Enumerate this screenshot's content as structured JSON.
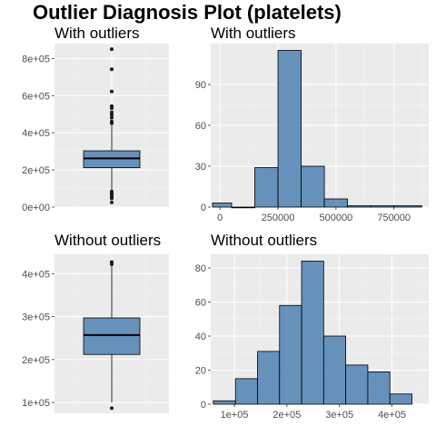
{
  "title": "Outlier Diagnosis Plot (platelets)",
  "colors": {
    "fill": "#4f81b2",
    "panel": "#ebebeb",
    "grid": "#ffffff",
    "text": "#4d4d4d"
  },
  "chart_data": [
    {
      "id": "box_with",
      "type": "box",
      "title": "With outliers",
      "ylim": [
        0,
        880000
      ],
      "yticks": [
        0,
        200000,
        400000,
        600000,
        800000
      ],
      "ytick_labels": [
        "0e+00",
        "2e+05",
        "4e+05",
        "6e+05",
        "8e+05"
      ],
      "stats": {
        "lower_whisker": 90000,
        "q1": 212000,
        "median": 262000,
        "q3": 303000,
        "upper_whisker": 440000
      },
      "outliers": [
        850000,
        742000,
        622000,
        543000,
        533000,
        510000,
        497000,
        481000,
        460000,
        451000,
        84000,
        75000,
        70000,
        65000,
        62000,
        52000,
        47000,
        25100
      ]
    },
    {
      "id": "hist_with",
      "type": "histogram",
      "title": "With outliers",
      "xlim": [
        -40000,
        900000
      ],
      "ylim": [
        0,
        120
      ],
      "xticks": [
        0,
        250000,
        500000,
        750000
      ],
      "xtick_labels": [
        "0",
        "250000",
        "500000",
        "750000"
      ],
      "yticks": [
        0,
        30,
        60,
        90
      ],
      "ytick_labels": [
        "0",
        "30",
        "60",
        "90"
      ],
      "bins": [
        {
          "x0": -50000,
          "x1": 50000,
          "count": 3
        },
        {
          "x0": 50000,
          "x1": 150000,
          "count": 0
        },
        {
          "x0": 150000,
          "x1": 250000,
          "count": 29
        },
        {
          "x0": 250000,
          "x1": 350000,
          "count": 115
        },
        {
          "x0": 350000,
          "x1": 450000,
          "count": 30
        },
        {
          "x0": 450000,
          "x1": 550000,
          "count": 6
        },
        {
          "x0": 550000,
          "x1": 650000,
          "count": 1
        },
        {
          "x0": 650000,
          "x1": 750000,
          "count": 1
        },
        {
          "x0": 750000,
          "x1": 870000,
          "count": 1
        }
      ]
    },
    {
      "id": "box_without",
      "type": "box",
      "title": "Without outliers",
      "ylim": [
        75000,
        445000
      ],
      "yticks": [
        100000,
        200000,
        300000,
        400000
      ],
      "ytick_labels": [
        "1e+05",
        "2e+05",
        "3e+05",
        "4e+05"
      ],
      "stats": {
        "lower_whisker": 100000,
        "q1": 212000,
        "median": 257000,
        "q3": 297000,
        "upper_whisker": 418000
      },
      "outliers": [
        427000,
        422000,
        87000
      ]
    },
    {
      "id": "hist_without",
      "type": "histogram",
      "title": "Without outliers",
      "xlim": [
        55000,
        470000
      ],
      "ylim": [
        0,
        88
      ],
      "xticks": [
        100000,
        200000,
        300000,
        400000
      ],
      "xtick_labels": [
        "1e+05",
        "2e+05",
        "3e+05",
        "4e+05"
      ],
      "yticks": [
        0,
        20,
        40,
        60,
        80
      ],
      "ytick_labels": [
        "0",
        "20",
        "40",
        "60",
        "80"
      ],
      "bins": [
        {
          "x0": 60000,
          "x1": 102000,
          "count": 2
        },
        {
          "x0": 102000,
          "x1": 144000,
          "count": 15
        },
        {
          "x0": 144000,
          "x1": 186000,
          "count": 31
        },
        {
          "x0": 186000,
          "x1": 228000,
          "count": 58
        },
        {
          "x0": 228000,
          "x1": 270000,
          "count": 84
        },
        {
          "x0": 270000,
          "x1": 312000,
          "count": 40
        },
        {
          "x0": 312000,
          "x1": 354000,
          "count": 23
        },
        {
          "x0": 354000,
          "x1": 396000,
          "count": 19
        },
        {
          "x0": 396000,
          "x1": 438000,
          "count": 6
        }
      ]
    }
  ]
}
